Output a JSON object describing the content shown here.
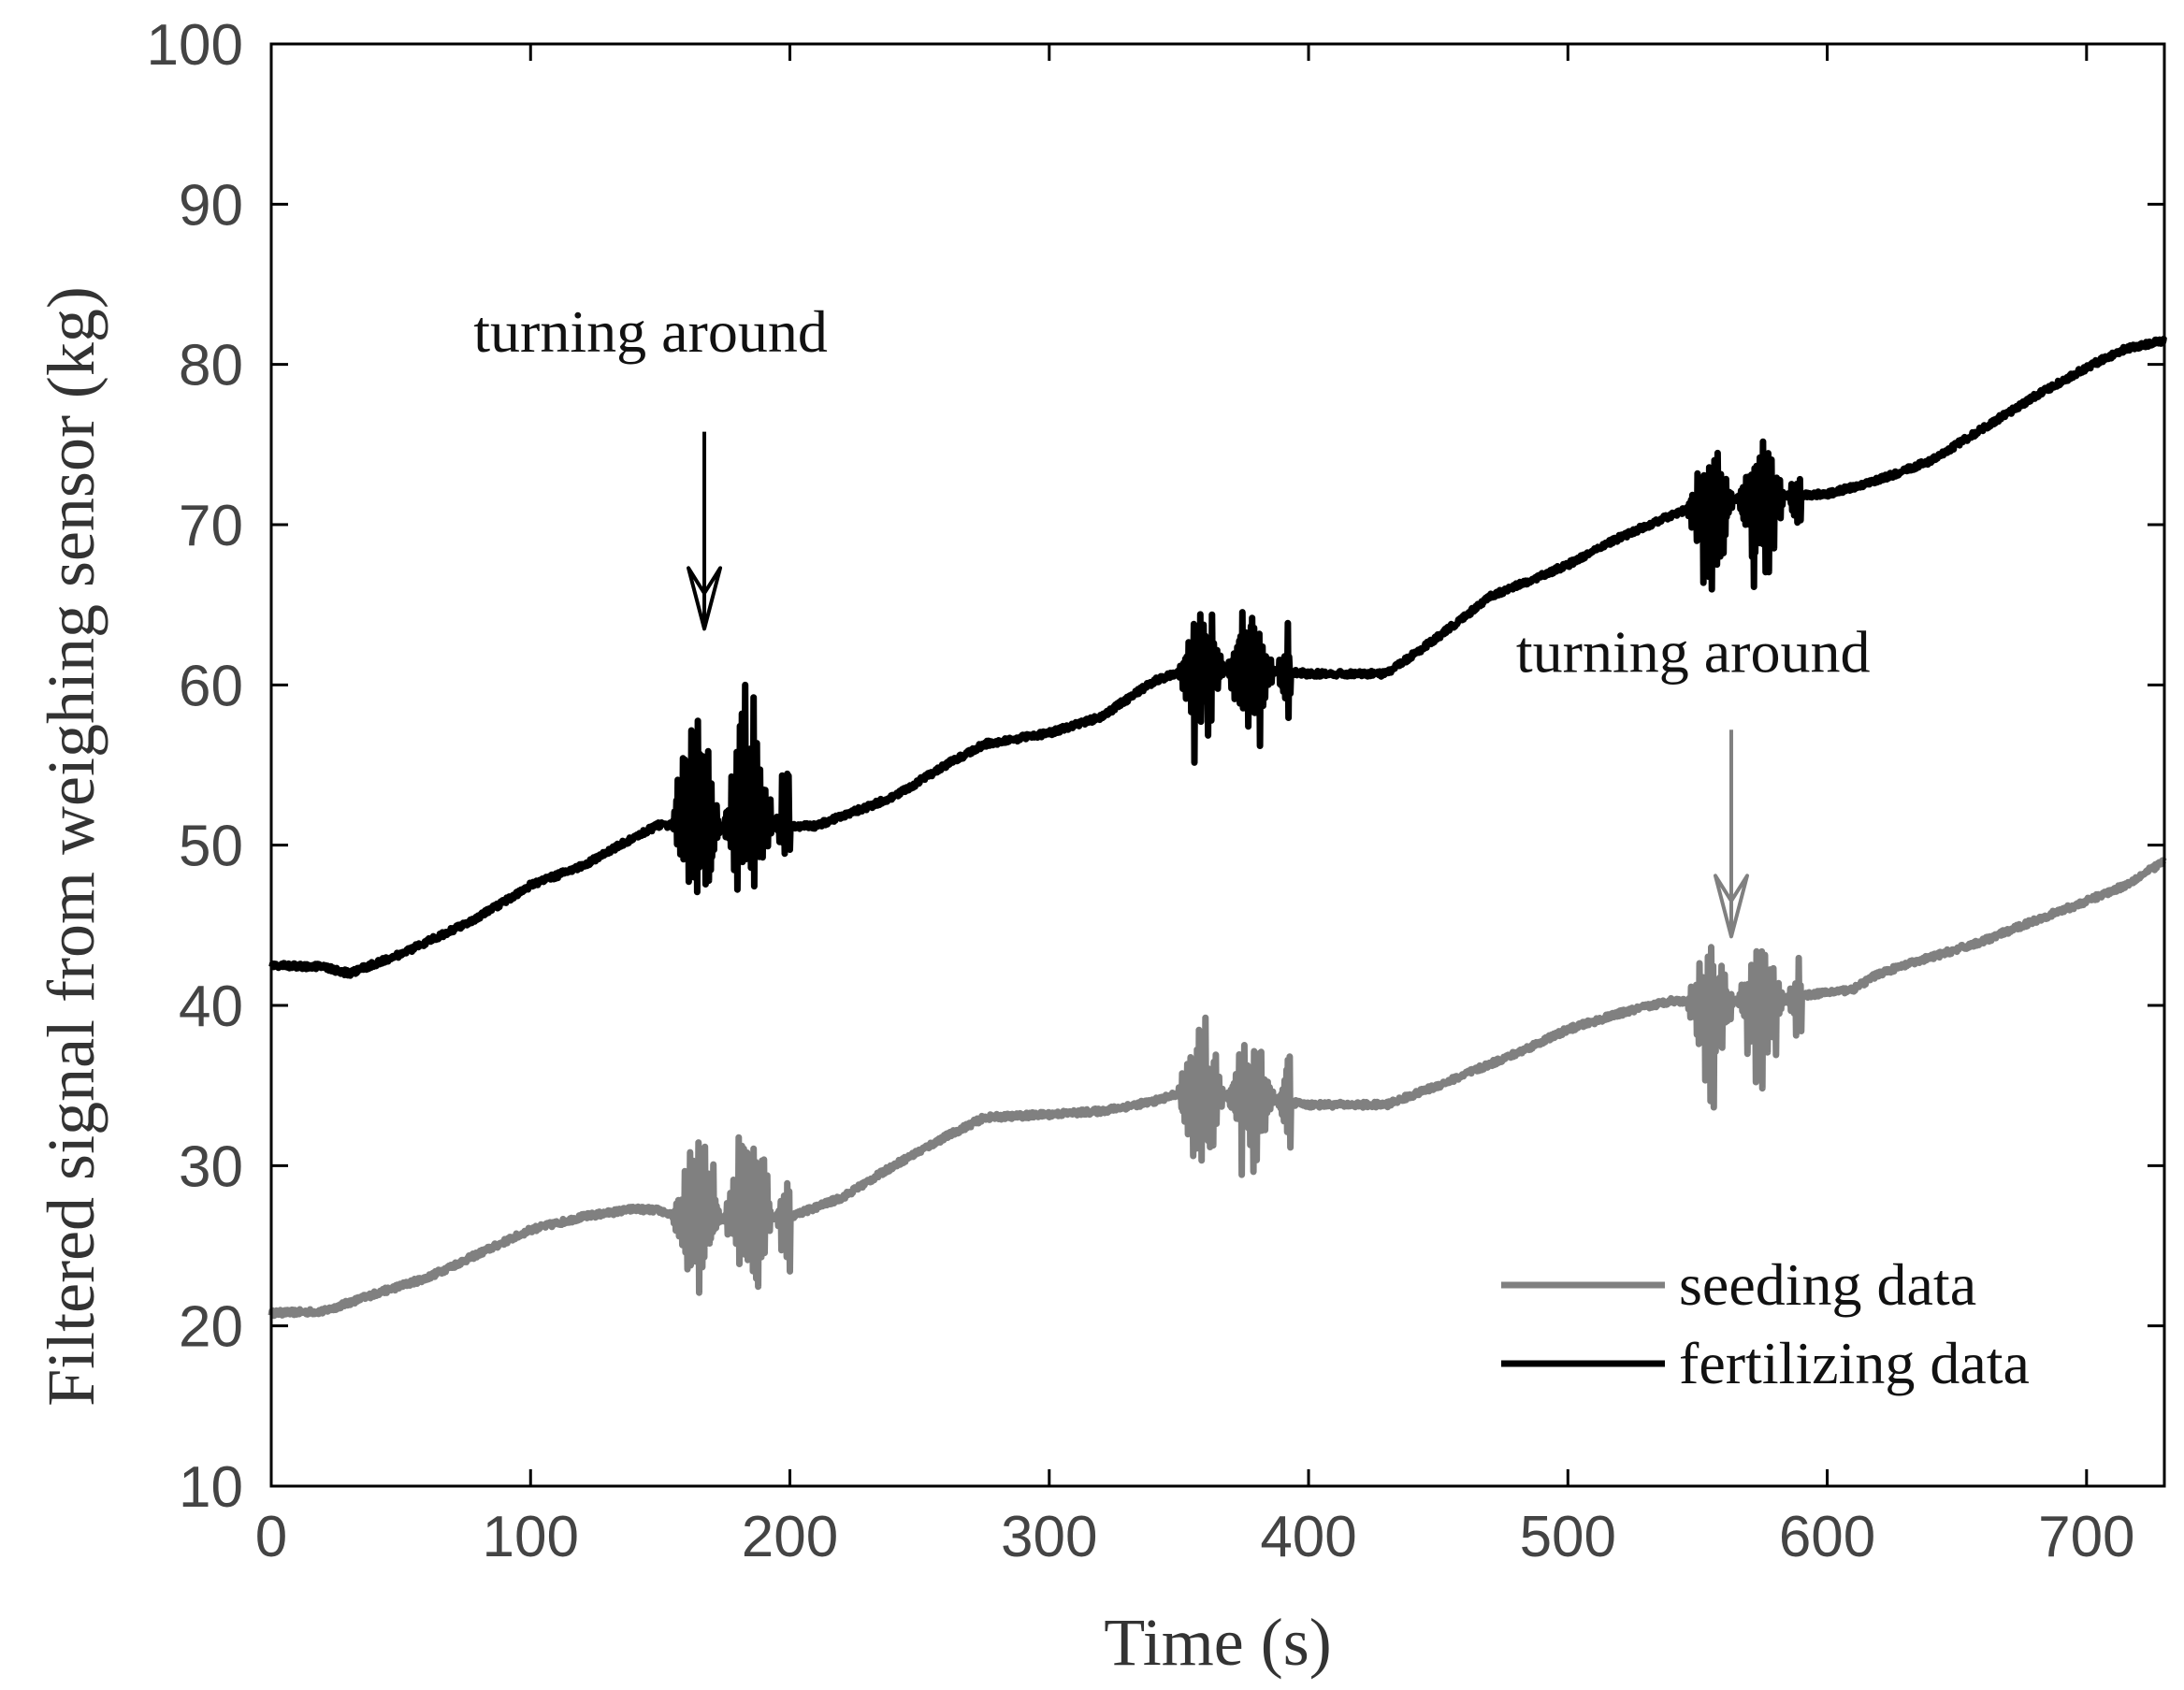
{
  "chart_data": {
    "type": "line",
    "title": "",
    "xlabel": "Time (s)",
    "ylabel": "Filtered signal from weighing sensor (kg)",
    "xlim": [
      0,
      730
    ],
    "ylim": [
      10,
      100
    ],
    "xticks": [
      0,
      100,
      200,
      300,
      400,
      500,
      600,
      700
    ],
    "yticks": [
      10,
      20,
      30,
      40,
      50,
      60,
      70,
      80,
      90,
      100
    ],
    "grid": false,
    "legend_position": "bottom-right",
    "series": [
      {
        "name": "seeding data",
        "color": "#808080",
        "points": [
          [
            0,
            20.8
          ],
          [
            20,
            20.9
          ],
          [
            40,
            22
          ],
          [
            60,
            23
          ],
          [
            80,
            24.5
          ],
          [
            100,
            26
          ],
          [
            120,
            26.8
          ],
          [
            140,
            27.3
          ],
          [
            150,
            27.2
          ],
          [
            160,
            26.5
          ],
          [
            180,
            26.8
          ],
          [
            200,
            26.8
          ],
          [
            220,
            28
          ],
          [
            240,
            30
          ],
          [
            260,
            31.8
          ],
          [
            275,
            33
          ],
          [
            300,
            33.2
          ],
          [
            320,
            33.4
          ],
          [
            340,
            34
          ],
          [
            350,
            34.5
          ],
          [
            380,
            34.2
          ],
          [
            400,
            33.8
          ],
          [
            430,
            33.8
          ],
          [
            450,
            35
          ],
          [
            480,
            37
          ],
          [
            500,
            38.5
          ],
          [
            520,
            39.5
          ],
          [
            540,
            40.3
          ],
          [
            555,
            40.2
          ],
          [
            575,
            40.4
          ],
          [
            590,
            40.6
          ],
          [
            610,
            41
          ],
          [
            620,
            42
          ],
          [
            640,
            43
          ],
          [
            660,
            44
          ],
          [
            680,
            45.3
          ],
          [
            700,
            46.5
          ],
          [
            715,
            47.5
          ],
          [
            730,
            49
          ]
        ],
        "bursts": [
          {
            "t_start": 154,
            "t_end": 200,
            "min": 19.7,
            "max": 35.4
          },
          {
            "t_start": 349,
            "t_end": 393,
            "min": 27.4,
            "max": 40.7
          },
          {
            "t_start": 545,
            "t_end": 590,
            "min": 32.5,
            "max": 45
          }
        ]
      },
      {
        "name": "fertilizing data",
        "color": "#000000",
        "points": [
          [
            0,
            42.5
          ],
          [
            20,
            42.4
          ],
          [
            30,
            42
          ],
          [
            50,
            43.2
          ],
          [
            80,
            45.5
          ],
          [
            100,
            47.5
          ],
          [
            120,
            48.7
          ],
          [
            140,
            50.5
          ],
          [
            150,
            51.3
          ],
          [
            170,
            51
          ],
          [
            190,
            51.2
          ],
          [
            210,
            51.2
          ],
          [
            240,
            53
          ],
          [
            260,
            55
          ],
          [
            275,
            56.3
          ],
          [
            300,
            57
          ],
          [
            320,
            58
          ],
          [
            340,
            60.2
          ],
          [
            350,
            60.8
          ],
          [
            380,
            61
          ],
          [
            400,
            60.7
          ],
          [
            430,
            60.7
          ],
          [
            450,
            63
          ],
          [
            470,
            65.5
          ],
          [
            500,
            67.5
          ],
          [
            520,
            69.2
          ],
          [
            540,
            70.6
          ],
          [
            555,
            71.5
          ],
          [
            575,
            71.8
          ],
          [
            600,
            71.9
          ],
          [
            620,
            72.8
          ],
          [
            640,
            74
          ],
          [
            660,
            76
          ],
          [
            680,
            78
          ],
          [
            700,
            79.8
          ],
          [
            715,
            81
          ],
          [
            730,
            81.5
          ]
        ],
        "bursts": [
          {
            "t_start": 154,
            "t_end": 200,
            "min": 43.7,
            "max": 64.3
          },
          {
            "t_start": 349,
            "t_end": 393,
            "min": 54,
            "max": 67
          },
          {
            "t_start": 545,
            "t_end": 590,
            "min": 64.2,
            "max": 76
          }
        ]
      }
    ],
    "annotations": [
      {
        "text": "turning around",
        "arrow_x": 167,
        "arrow_from_y": 75.8,
        "arrow_to_y": 63.5,
        "color": "#000000"
      },
      {
        "text": "turning around",
        "arrow_x": 563,
        "arrow_from_y": 57.2,
        "arrow_to_y": 44.3,
        "color": "#808080"
      }
    ]
  }
}
